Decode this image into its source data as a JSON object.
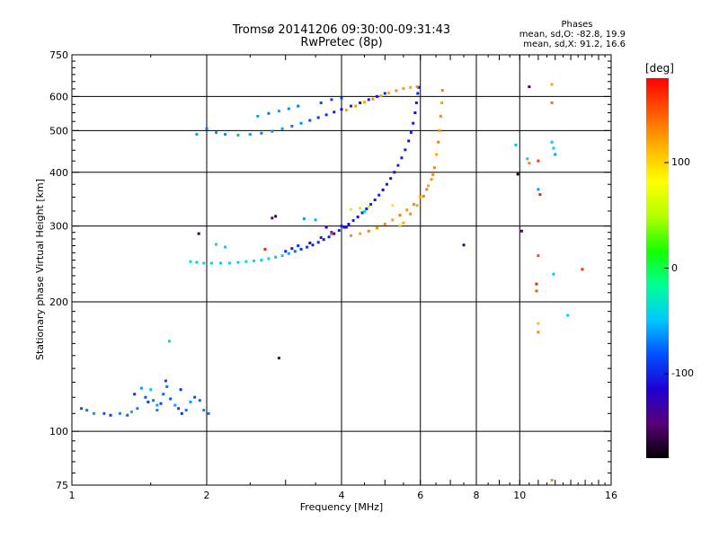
{
  "chart_data": {
    "type": "scatter",
    "title": "Tromsø 20141206 09:30:00-09:31:43",
    "subtitle": "RwPretec (8p)",
    "stats": {
      "heading": "Phases",
      "o_line": "mean, sd,O: -82.8, 19.9",
      "x_line": "mean, sd,X:  91.2, 16.6"
    },
    "xlabel": "Frequency [MHz]",
    "ylabel": "Stationary phase Virtual Height [km]",
    "x_scale": "log",
    "y_scale": "log",
    "xlim": [
      1,
      16
    ],
    "ylim": [
      75,
      750
    ],
    "x_ticks": [
      "1",
      "2",
      "4",
      "6",
      "8",
      "10",
      "16"
    ],
    "x_tick_values": [
      1,
      2,
      4,
      6,
      8,
      10,
      16
    ],
    "y_ticks": [
      "75",
      "100",
      "200",
      "300",
      "400",
      "500",
      "600",
      "750"
    ],
    "y_tick_values": [
      75,
      100,
      200,
      300,
      400,
      500,
      600,
      750
    ],
    "grid_x": [
      2,
      4,
      6,
      8,
      10
    ],
    "grid_y": [
      100,
      200,
      300,
      400,
      500,
      600
    ],
    "grid": true,
    "colorbar": {
      "label": "[deg]",
      "range": [
        -180,
        180
      ],
      "ticks": [
        "100",
        "0",
        "-100"
      ],
      "tick_values": [
        100,
        0,
        -100
      ],
      "colors": [
        "#000000",
        "#5a0078",
        "#1e00d2",
        "#0050ff",
        "#00c8ff",
        "#00ff96",
        "#14ff00",
        "#b4ff00",
        "#ffff00",
        "#ffb400",
        "#ff5a00",
        "#ff0000"
      ]
    },
    "series": [
      {
        "values": [
          [
            1.05,
            113,
            -80
          ],
          [
            1.08,
            112,
            -70
          ],
          [
            1.12,
            110,
            -60
          ],
          [
            1.18,
            110,
            -80
          ],
          [
            1.22,
            109,
            -90
          ],
          [
            1.28,
            110,
            -65
          ],
          [
            1.33,
            109,
            -75
          ],
          [
            1.36,
            111,
            -55
          ],
          [
            1.4,
            113,
            -70
          ],
          [
            1.43,
            126,
            -60
          ],
          [
            1.46,
            120,
            -80
          ],
          [
            1.48,
            117,
            -90
          ],
          [
            1.52,
            118,
            -70
          ],
          [
            1.55,
            115,
            -60
          ],
          [
            1.58,
            116,
            -85
          ],
          [
            1.6,
            122,
            -75
          ],
          [
            1.63,
            127,
            -70
          ],
          [
            1.66,
            119,
            -80
          ],
          [
            1.7,
            115,
            -60
          ],
          [
            1.73,
            113,
            -85
          ],
          [
            1.76,
            110,
            -90
          ],
          [
            1.8,
            112,
            -70
          ],
          [
            1.84,
            117,
            -60
          ],
          [
            1.88,
            120,
            -80
          ],
          [
            1.93,
            118,
            -75
          ],
          [
            1.97,
            112,
            -65
          ],
          [
            2.02,
            110,
            -70
          ],
          [
            1.5,
            125,
            -50
          ],
          [
            1.62,
            131,
            -85
          ],
          [
            1.75,
            125,
            -95
          ],
          [
            1.65,
            162,
            -40
          ],
          [
            1.38,
            122,
            -95
          ],
          [
            1.55,
            112,
            -65
          ]
        ]
      },
      {
        "values": [
          [
            1.84,
            248,
            -40
          ],
          [
            1.9,
            247,
            -45
          ],
          [
            1.97,
            246,
            -35
          ],
          [
            2.05,
            246,
            -40
          ],
          [
            2.15,
            246,
            -45
          ],
          [
            2.25,
            246,
            -40
          ],
          [
            2.35,
            247,
            -45
          ],
          [
            2.45,
            248,
            -40
          ],
          [
            2.55,
            249,
            -35
          ],
          [
            2.65,
            250,
            -45
          ],
          [
            2.75,
            252,
            -40
          ],
          [
            2.85,
            254,
            -50
          ],
          [
            2.95,
            256,
            -45
          ],
          [
            3.05,
            259,
            -60
          ],
          [
            3.15,
            262,
            -75
          ],
          [
            3.25,
            265,
            -90
          ],
          [
            3.35,
            268,
            -95
          ],
          [
            3.45,
            271,
            -100
          ],
          [
            3.55,
            275,
            -95
          ],
          [
            3.65,
            279,
            -105
          ],
          [
            3.75,
            283,
            -100
          ],
          [
            3.85,
            288,
            -110
          ],
          [
            3.95,
            293,
            -100
          ],
          [
            4.05,
            298,
            -105
          ],
          [
            4.15,
            303,
            -110
          ],
          [
            4.25,
            309,
            -100
          ],
          [
            4.35,
            315,
            -105
          ],
          [
            4.45,
            322,
            -100
          ],
          [
            4.55,
            329,
            -110
          ],
          [
            4.65,
            337,
            -100
          ],
          [
            4.75,
            345,
            -105
          ],
          [
            4.85,
            354,
            -100
          ],
          [
            4.95,
            364,
            -110
          ],
          [
            5.05,
            375,
            -100
          ],
          [
            5.15,
            387,
            -105
          ],
          [
            5.25,
            400,
            -110
          ],
          [
            5.35,
            415,
            -100
          ],
          [
            5.45,
            432,
            -105
          ],
          [
            5.55,
            451,
            -100
          ],
          [
            5.65,
            473,
            -110
          ],
          [
            5.72,
            495,
            -100
          ],
          [
            5.78,
            520,
            -105
          ],
          [
            5.84,
            550,
            -110
          ],
          [
            5.88,
            580,
            -100
          ],
          [
            5.92,
            610,
            -105
          ],
          [
            5.95,
            630,
            -110
          ],
          [
            2.1,
            272,
            -40
          ],
          [
            2.2,
            268,
            -45
          ],
          [
            3.0,
            262,
            -100
          ],
          [
            3.1,
            266,
            -105
          ],
          [
            3.2,
            270,
            -95
          ],
          [
            3.4,
            274,
            -110
          ],
          [
            3.6,
            282,
            -100
          ],
          [
            3.8,
            290,
            -105
          ],
          [
            4.0,
            300,
            -100
          ]
        ]
      },
      {
        "values": [
          [
            4.2,
            285,
            130
          ],
          [
            4.4,
            288,
            120
          ],
          [
            4.6,
            292,
            135
          ],
          [
            4.8,
            297,
            125
          ],
          [
            5.0,
            303,
            130
          ],
          [
            5.2,
            310,
            120
          ],
          [
            5.4,
            318,
            135
          ],
          [
            5.6,
            327,
            125
          ],
          [
            5.8,
            337,
            130
          ],
          [
            6.0,
            350,
            120
          ],
          [
            6.2,
            365,
            135
          ],
          [
            6.35,
            385,
            125
          ],
          [
            6.45,
            410,
            130
          ],
          [
            6.52,
            440,
            120
          ],
          [
            6.58,
            470,
            135
          ],
          [
            6.62,
            500,
            125
          ],
          [
            6.66,
            540,
            130
          ],
          [
            6.7,
            580,
            120
          ],
          [
            6.72,
            620,
            135
          ],
          [
            5.5,
            305,
            120
          ],
          [
            5.7,
            320,
            130
          ],
          [
            5.9,
            335,
            125
          ],
          [
            6.1,
            352,
            135
          ],
          [
            6.25,
            372,
            120
          ],
          [
            6.4,
            395,
            130
          ]
        ]
      },
      {
        "values": [
          [
            4.1,
            558,
            120
          ],
          [
            4.3,
            570,
            125
          ],
          [
            4.5,
            582,
            120
          ],
          [
            4.7,
            592,
            130
          ],
          [
            4.9,
            602,
            125
          ],
          [
            5.1,
            611,
            120
          ],
          [
            5.3,
            619,
            130
          ],
          [
            5.5,
            626,
            125
          ],
          [
            5.7,
            630,
            120
          ],
          [
            5.9,
            632,
            130
          ]
        ]
      },
      {
        "values": [
          [
            2.1,
            495,
            -60
          ],
          [
            2.2,
            490,
            -65
          ],
          [
            2.35,
            488,
            -55
          ],
          [
            2.5,
            490,
            -60
          ],
          [
            2.65,
            493,
            -70
          ],
          [
            2.8,
            498,
            -65
          ],
          [
            2.95,
            505,
            -60
          ],
          [
            3.1,
            512,
            -70
          ],
          [
            3.25,
            520,
            -65
          ],
          [
            3.4,
            528,
            -80
          ],
          [
            3.55,
            536,
            -90
          ],
          [
            3.7,
            544,
            -95
          ],
          [
            3.85,
            552,
            -100
          ],
          [
            4.0,
            560,
            -105
          ],
          [
            4.2,
            570,
            -100
          ],
          [
            4.4,
            580,
            -110
          ],
          [
            4.6,
            590,
            -100
          ],
          [
            4.8,
            600,
            -105
          ],
          [
            5.0,
            610,
            -100
          ],
          [
            2.6,
            540,
            -60
          ],
          [
            2.75,
            548,
            -70
          ],
          [
            2.9,
            555,
            -60
          ],
          [
            3.05,
            562,
            -65
          ],
          [
            3.2,
            570,
            -70
          ],
          [
            3.6,
            580,
            -80
          ],
          [
            3.8,
            590,
            -90
          ],
          [
            4.0,
            595,
            -85
          ],
          [
            1.9,
            490,
            -60
          ],
          [
            2.0,
            505,
            -70
          ]
        ]
      },
      {
        "values": [
          [
            4.2,
            328,
            60
          ],
          [
            4.4,
            330,
            50
          ],
          [
            4.6,
            333,
            55
          ],
          [
            3.3,
            312,
            -60
          ],
          [
            3.5,
            310,
            -55
          ],
          [
            4.1,
            298,
            -110
          ],
          [
            5.4,
            302,
            80
          ],
          [
            3.8,
            288,
            160
          ],
          [
            4.5,
            324,
            -40
          ],
          [
            2.8,
            313,
            -140
          ],
          [
            5.2,
            335,
            90
          ]
        ]
      },
      {
        "values": [
          [
            10.5,
            632,
            -150
          ],
          [
            11.8,
            640,
            120
          ],
          [
            11.8,
            580,
            140
          ],
          [
            11.0,
            425,
            160
          ],
          [
            11.0,
            365,
            -60
          ],
          [
            11.1,
            355,
            170
          ],
          [
            11.0,
            256,
            150
          ],
          [
            10.9,
            220,
            170
          ],
          [
            10.9,
            212,
            150
          ],
          [
            11.9,
            232,
            -50
          ],
          [
            12.8,
            186,
            -40
          ],
          [
            11.0,
            178,
            110
          ],
          [
            11.0,
            170,
            130
          ],
          [
            11.8,
            77,
            130
          ],
          [
            13.8,
            238,
            160
          ],
          [
            9.8,
            463,
            -50
          ],
          [
            9.9,
            396,
            -170
          ],
          [
            10.1,
            292,
            -150
          ],
          [
            7.5,
            271,
            -120
          ],
          [
            10.4,
            430,
            -40
          ],
          [
            11.8,
            470,
            -50
          ],
          [
            11.9,
            455,
            -45
          ],
          [
            12.0,
            440,
            -60
          ],
          [
            10.5,
            420,
            130
          ],
          [
            1.92,
            288,
            -160
          ],
          [
            2.9,
            148,
            -150
          ],
          [
            2.85,
            316,
            -160
          ],
          [
            3.7,
            298,
            -120
          ],
          [
            2.7,
            265,
            170
          ]
        ]
      }
    ]
  }
}
